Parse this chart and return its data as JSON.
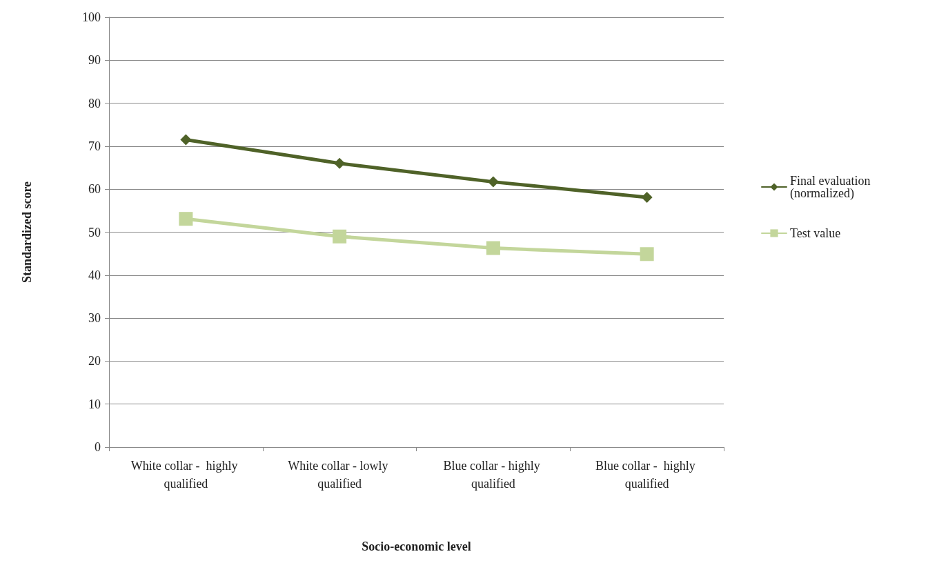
{
  "chart_data": {
    "type": "line",
    "xlabel": "Socio-economic level",
    "ylabel": "Standardized score",
    "categories": [
      "White collar -  highly qualified",
      "White collar - lowly qualified",
      "Blue collar - highly qualified",
      "Blue collar -  highly qualified"
    ],
    "series": [
      {
        "name": "Final evaluation (normalized)",
        "color": "#4f6228",
        "marker": "diamond",
        "values": [
          71.5,
          66.0,
          61.7,
          58.1
        ]
      },
      {
        "name": "Test value",
        "color": "#c3d69b",
        "marker": "square",
        "values": [
          53.1,
          49.0,
          46.3,
          44.9
        ]
      }
    ],
    "ylim": [
      0,
      100
    ],
    "yticks": [
      0,
      10,
      20,
      30,
      40,
      50,
      60,
      70,
      80,
      90,
      100
    ],
    "grid": "y",
    "legend": "right",
    "line_style": "solid"
  }
}
